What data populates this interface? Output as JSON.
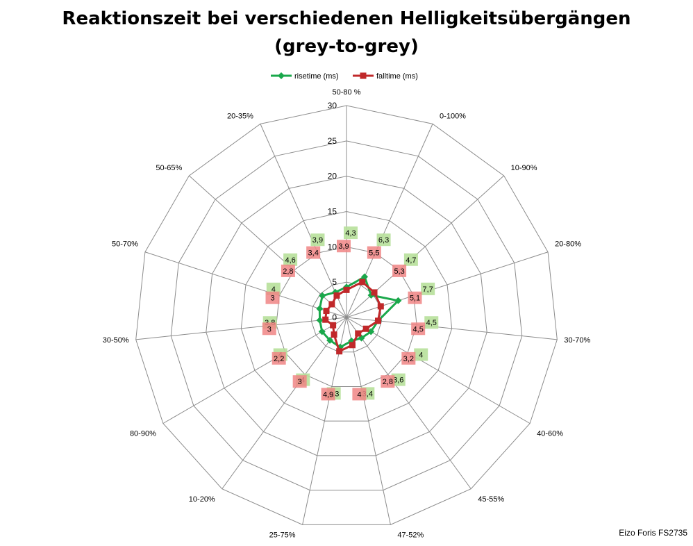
{
  "colors": {
    "rise": "#1aa84b",
    "fall": "#c0282a",
    "rise_label_bg": "#b7e09a",
    "fall_label_bg": "#f08585",
    "grid": "#8c8c8c"
  },
  "chart_data": {
    "type": "radar",
    "title": "Reaktionszeit bei verschiedenen Helligkeitsübergängen",
    "subtitle": "(grey-to-grey)",
    "categories": [
      "50-80 %",
      "0-100%",
      "10-90%",
      "20-80%",
      "30-70%",
      "40-60%",
      "45-55%",
      "47-52%",
      "25-75%",
      "10-20%",
      "80-90%",
      "30-50%",
      "50-70%",
      "50-65%",
      "20-35%"
    ],
    "series": [
      {
        "name": "risetime (ms)",
        "values": [
          4.3,
          6.3,
          4.7,
          7.7,
          4.5,
          4,
          3.6,
          3.4,
          4.3,
          4,
          4,
          3.8,
          4,
          4.6,
          3.9
        ]
      },
      {
        "name": "falltime (ms)",
        "values": [
          3.9,
          5.5,
          5.3,
          5.1,
          4.5,
          3.2,
          2.8,
          4,
          4.9,
          3,
          2.2,
          3,
          3,
          2.8,
          3.4
        ]
      }
    ],
    "r_ticks": [
      0,
      5,
      10,
      15,
      20,
      25,
      30
    ],
    "r_range": [
      0,
      30
    ],
    "legend_position": "top"
  },
  "footer": {
    "text": "Eizo Foris FS2735"
  }
}
